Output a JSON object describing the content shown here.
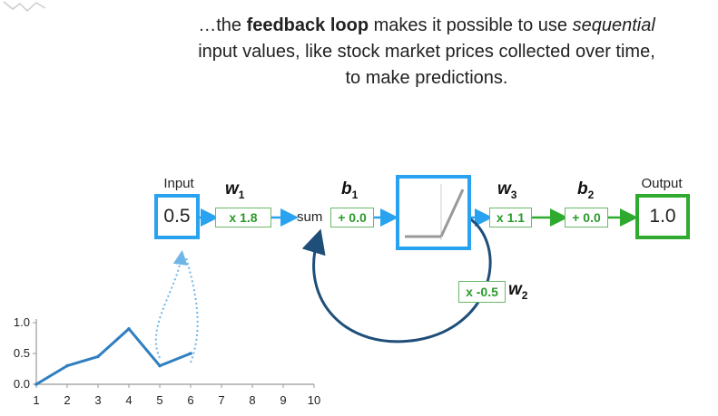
{
  "caption": {
    "part1": "…the ",
    "bold": "feedback loop",
    "part2": " makes it possible to use ",
    "italic": "sequential",
    "part3": " input values, like stock market prices collected over time, to make predictions."
  },
  "diagram": {
    "input_label": "Input",
    "input_value": "0.5",
    "w1": "w",
    "w1_sub": "1",
    "w1_tag": "x 1.8",
    "sum_label": "sum",
    "b1": "b",
    "b1_sub": "1",
    "b1_tag": "+ 0.0",
    "w3": "w",
    "w3_sub": "3",
    "w3_tag": "x 1.1",
    "b2": "b",
    "b2_sub": "2",
    "b2_tag": "+ 0.0",
    "output_label": "Output",
    "output_value": "1.0",
    "w2": "w",
    "w2_sub": "2",
    "w2_tag": "x -0.5"
  },
  "colors": {
    "blue": "#29a3f0",
    "green": "#2eaa2e",
    "loop": "#1f4e79"
  },
  "chart_data": {
    "type": "line",
    "x": [
      1,
      2,
      3,
      4,
      5,
      6
    ],
    "y": [
      0.0,
      0.3,
      0.45,
      0.9,
      0.3,
      0.5
    ],
    "xticks": [
      "1",
      "2",
      "3",
      "4",
      "5",
      "6",
      "7",
      "8",
      "9",
      "10"
    ],
    "yticks": [
      "0.0",
      "0.5",
      "1.0"
    ],
    "xlim": [
      1,
      10
    ],
    "ylim": [
      0,
      1.0
    ],
    "xlabel": "",
    "ylabel": "",
    "title": ""
  }
}
